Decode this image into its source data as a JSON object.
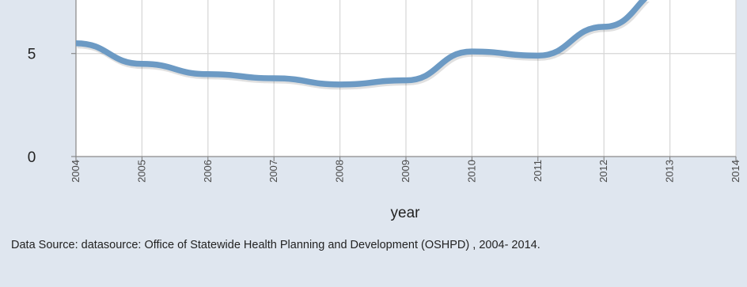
{
  "chart_data": {
    "type": "line",
    "x": [
      2004,
      2005,
      2006,
      2007,
      2008,
      2009,
      2010,
      2011,
      2012,
      2013
    ],
    "series": [
      {
        "values": [
          5.5,
          4.5,
          4.0,
          3.8,
          3.5,
          3.7,
          5.1,
          4.9,
          6.3,
          8.2
        ],
        "color": "#6c9ac4"
      }
    ],
    "x_ticks": [
      "2004",
      "2005",
      "2006",
      "2007",
      "2008",
      "2009",
      "2010",
      "2011",
      "2012",
      "2013",
      "2014"
    ],
    "y_ticks": [
      "0",
      "5"
    ],
    "xlabel": "year",
    "ylabel": "",
    "xlim": [
      2004,
      2014
    ],
    "ylim": [
      0,
      7.6
    ],
    "grid": true
  },
  "footer": {
    "source_text": "Data Source: datasource: Office of Statewide Health Planning and Development (OSHPD) , 2004- 2014."
  }
}
